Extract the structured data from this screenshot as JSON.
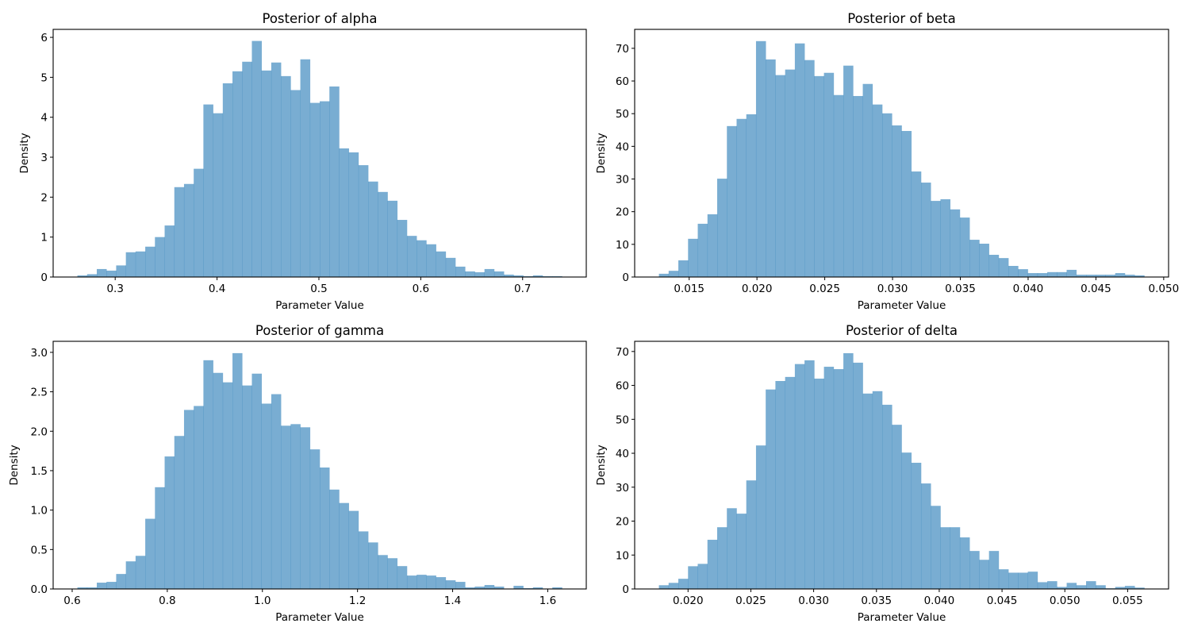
{
  "chart_data": [
    {
      "type": "bar",
      "title": "Posterior of alpha",
      "xlabel": "Parameter Value",
      "ylabel": "Density",
      "bin_start": 0.2629,
      "bin_end": 0.7387,
      "values": [
        0.04,
        0.07,
        0.2,
        0.16,
        0.29,
        0.62,
        0.64,
        0.76,
        1.0,
        1.29,
        2.25,
        2.33,
        2.71,
        4.32,
        4.1,
        4.85,
        5.15,
        5.39,
        5.91,
        5.17,
        5.37,
        5.03,
        4.68,
        5.45,
        4.36,
        4.4,
        4.77,
        3.22,
        3.12,
        2.8,
        2.39,
        2.13,
        1.91,
        1.43,
        1.03,
        0.92,
        0.82,
        0.64,
        0.48,
        0.26,
        0.14,
        0.12,
        0.2,
        0.14,
        0.06,
        0.04,
        0.02,
        0.04,
        0.02,
        0.02
      ],
      "xlim": [
        0.2391,
        0.7625
      ],
      "ylim": [
        0,
        6.2
      ],
      "xticks": [
        0.3,
        0.4,
        0.5,
        0.6,
        0.7
      ],
      "xtick_labels": [
        "0.3",
        "0.4",
        "0.5",
        "0.6",
        "0.7"
      ],
      "yticks": [
        0,
        1,
        2,
        3,
        4,
        5,
        6
      ],
      "ytick_labels": [
        "0",
        "1",
        "2",
        "3",
        "4",
        "5",
        "6"
      ],
      "grid": false
    },
    {
      "type": "bar",
      "title": "Posterior of beta",
      "xlabel": "Parameter Value",
      "ylabel": "Density",
      "bin_start": 0.01277,
      "bin_end": 0.04857,
      "values": [
        1.0,
        1.9,
        5.1,
        11.7,
        16.3,
        19.2,
        30.1,
        46.2,
        48.4,
        49.8,
        72.2,
        66.6,
        61.8,
        63.5,
        71.5,
        66.4,
        61.5,
        62.5,
        55.7,
        64.7,
        55.4,
        59.1,
        52.8,
        50.1,
        46.4,
        44.7,
        32.3,
        28.9,
        23.3,
        23.8,
        20.7,
        18.2,
        11.4,
        10.2,
        6.8,
        5.8,
        3.4,
        2.4,
        1.2,
        1.2,
        1.5,
        1.5,
        2.2,
        0.7,
        0.7,
        0.7,
        0.7,
        1.2,
        0.7,
        0.5
      ],
      "xlim": [
        0.01098,
        0.05036
      ],
      "ylim": [
        0,
        75.8
      ],
      "xticks": [
        0.015,
        0.02,
        0.025,
        0.03,
        0.035,
        0.04,
        0.045,
        0.05
      ],
      "xtick_labels": [
        "0.015",
        "0.020",
        "0.025",
        "0.030",
        "0.035",
        "0.040",
        "0.045",
        "0.050"
      ],
      "yticks": [
        0,
        10,
        20,
        30,
        40,
        50,
        60,
        70
      ],
      "ytick_labels": [
        "0",
        "10",
        "20",
        "30",
        "40",
        "50",
        "60",
        "70"
      ],
      "grid": false
    },
    {
      "type": "bar",
      "title": "Posterior of gamma",
      "xlabel": "Parameter Value",
      "ylabel": "Density",
      "bin_start": 0.611,
      "bin_end": 1.63,
      "values": [
        0.02,
        0.02,
        0.08,
        0.09,
        0.19,
        0.35,
        0.42,
        0.89,
        1.29,
        1.68,
        1.94,
        2.27,
        2.32,
        2.9,
        2.74,
        2.62,
        2.99,
        2.58,
        2.73,
        2.35,
        2.47,
        2.07,
        2.09,
        2.05,
        1.77,
        1.54,
        1.26,
        1.09,
        0.99,
        0.73,
        0.59,
        0.43,
        0.39,
        0.29,
        0.17,
        0.18,
        0.17,
        0.15,
        0.11,
        0.09,
        0.02,
        0.03,
        0.05,
        0.03,
        0,
        0.04,
        0.01,
        0.02,
        0,
        0.02
      ],
      "xlim": [
        0.56,
        1.681
      ],
      "ylim": [
        0,
        3.14
      ],
      "xticks": [
        0.6,
        0.8,
        1.0,
        1.2,
        1.4,
        1.6
      ],
      "xtick_labels": [
        "0.6",
        "0.8",
        "1.0",
        "1.2",
        "1.4",
        "1.6"
      ],
      "yticks": [
        0,
        0.5,
        1.0,
        1.5,
        2.0,
        2.5,
        3.0
      ],
      "ytick_labels": [
        "0.0",
        "0.5",
        "1.0",
        "1.5",
        "2.0",
        "2.5",
        "3.0"
      ],
      "grid": false
    },
    {
      "type": "bar",
      "title": "Posterior of delta",
      "xlabel": "Parameter Value",
      "ylabel": "Density",
      "bin_start": 0.01768,
      "bin_end": 0.05633,
      "values": [
        1.1,
        1.8,
        3.0,
        6.7,
        7.4,
        14.5,
        18.2,
        23.8,
        22.2,
        32.0,
        42.3,
        58.8,
        61.3,
        62.5,
        66.3,
        67.4,
        62.0,
        65.5,
        64.8,
        69.5,
        66.7,
        57.6,
        58.3,
        54.3,
        48.4,
        40.2,
        37.2,
        31.1,
        24.5,
        18.2,
        18.2,
        15.2,
        11.2,
        8.6,
        11.2,
        5.8,
        4.8,
        4.8,
        5.1,
        2.0,
        2.3,
        0.6,
        1.8,
        1.1,
        2.3,
        1.1,
        0.2,
        0.6,
        0.9,
        0.4
      ],
      "xlim": [
        0.01575,
        0.05826
      ],
      "ylim": [
        0,
        73.0
      ],
      "xticks": [
        0.02,
        0.025,
        0.03,
        0.035,
        0.04,
        0.045,
        0.05,
        0.055
      ],
      "xtick_labels": [
        "0.020",
        "0.025",
        "0.030",
        "0.035",
        "0.040",
        "0.045",
        "0.050",
        "0.055"
      ],
      "yticks": [
        0,
        10,
        20,
        30,
        40,
        50,
        60,
        70
      ],
      "ytick_labels": [
        "0",
        "10",
        "20",
        "30",
        "40",
        "50",
        "60",
        "70"
      ],
      "grid": false
    }
  ],
  "colors": {
    "bar": "#1f77b4",
    "bar_opacity": 0.6
  }
}
